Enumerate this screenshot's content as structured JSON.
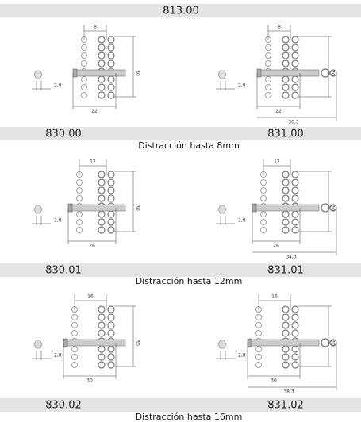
{
  "header": {
    "code": "813.00"
  },
  "sections": [
    {
      "codes": [
        "830.00",
        "831.00"
      ],
      "caption": "Distracción hasta 8mm",
      "drawings": [
        {
          "gap": "8",
          "screw": "2,8",
          "length": "22",
          "height": "30"
        },
        {
          "gap": "8",
          "screw": "2,8",
          "length": "22",
          "total": "30,3",
          "height": "30"
        }
      ]
    },
    {
      "codes": [
        "830.01",
        "831.01"
      ],
      "caption": "Distracción hasta 12mm",
      "drawings": [
        {
          "gap": "12",
          "screw": "2,8",
          "length": "26",
          "height": "30"
        },
        {
          "gap": "12",
          "screw": "2,8",
          "length": "26",
          "total": "34,3",
          "height": "30"
        }
      ]
    },
    {
      "codes": [
        "830.02",
        "831.02"
      ],
      "caption": "Distracción hasta 16mm",
      "drawings": [
        {
          "gap": "16",
          "screw": "2,8",
          "length": "30",
          "height": "30"
        },
        {
          "gap": "16",
          "screw": "2,8",
          "length": "30",
          "total": "38,3",
          "height": "30"
        }
      ]
    }
  ]
}
